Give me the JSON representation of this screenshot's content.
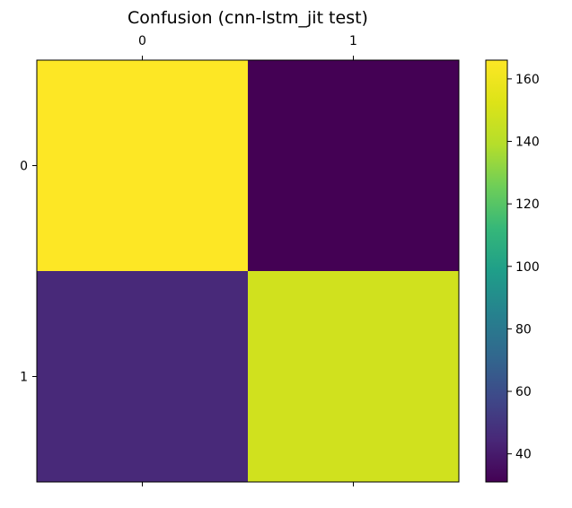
{
  "chart_data": {
    "type": "heatmap",
    "title": "Confusion (cnn-lstm_jit test)",
    "xlabel": "",
    "ylabel": "",
    "x_categories": [
      "0",
      "1"
    ],
    "y_categories": [
      "0",
      "1"
    ],
    "matrix": [
      [
        166,
        31
      ],
      [
        45,
        148
      ]
    ],
    "x_ticks_position": "top",
    "colormap": "viridis",
    "colorbar": {
      "range": [
        31,
        166
      ],
      "ticks": [
        40,
        60,
        80,
        100,
        120,
        140,
        160
      ],
      "tick_labels": [
        "40",
        "60",
        "80",
        "100",
        "120",
        "140",
        "160"
      ],
      "placement": "right"
    },
    "grid": false
  }
}
